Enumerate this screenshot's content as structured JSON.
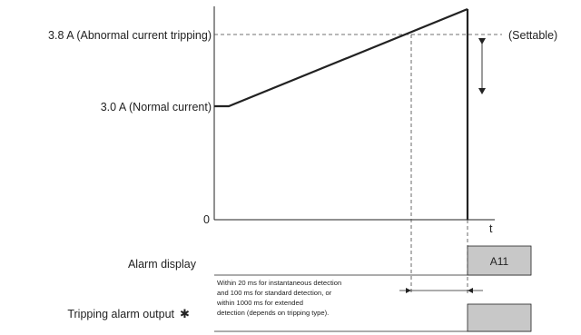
{
  "levels": {
    "abnormal_label": "3.8 A (Abnormal current tripping)",
    "normal_label": "3.0 A (Normal current)",
    "zero_label": "0",
    "settable_label": "(Settable)"
  },
  "axis": {
    "t_label": "t"
  },
  "rows": {
    "alarm_display_label": "Alarm display",
    "alarm_code": "A11",
    "tripping_output_label": "Tripping alarm output",
    "tripping_output_mark": "✱"
  },
  "note_lines": [
    "Within 20 ms for instantaneous detection",
    "and 100 ms for standard detection, or",
    "within 1000 ms for extended",
    "detection (depends on tripping type)."
  ]
}
